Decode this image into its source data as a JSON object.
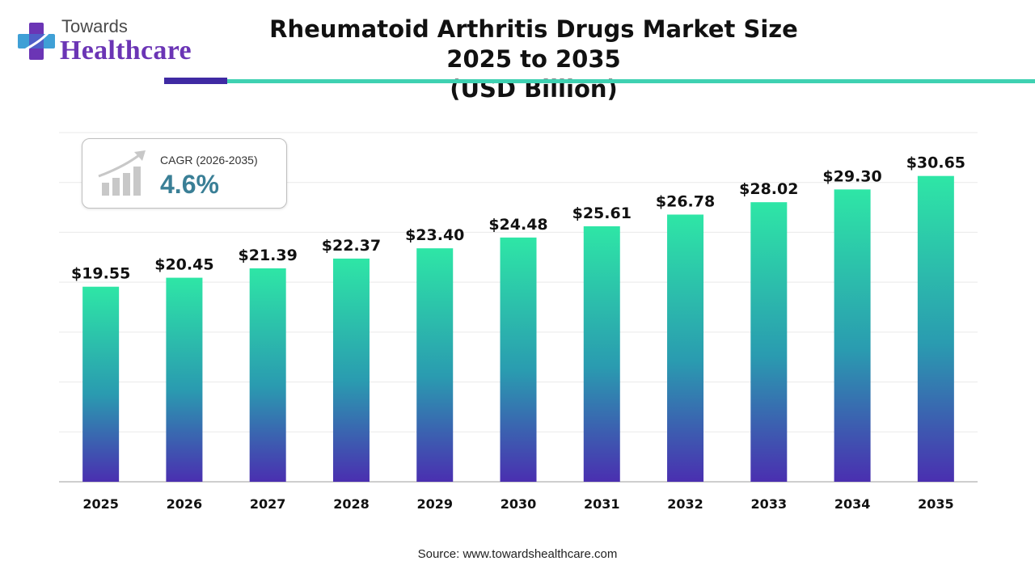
{
  "brand": {
    "top": "Towards",
    "bottom": "Healthcare"
  },
  "header": {
    "title_line1": "Rheumatoid Arthritis Drugs Market Size 2025 to 2035",
    "title_line2": "(USD Billion)"
  },
  "cagr": {
    "label": "CAGR (2026-2035)",
    "value": "4.6%"
  },
  "source": "Source: www.towardshealthcare.com",
  "colors": {
    "bar_top": "#2ee6a6",
    "bar_mid": "#2a9bb0",
    "bar_bottom": "#4a2fb0",
    "accent_purple": "#6b35b5",
    "accent_teal": "#3fd1b2",
    "cagr_value": "#3a7f96"
  },
  "icons": {
    "logo": "medical-cross-logo",
    "cagr": "growth-chart-icon"
  },
  "chart_data": {
    "type": "bar",
    "title": "Rheumatoid Arthritis Drugs Market Size 2025 to 2035 (USD Billion)",
    "xlabel": "",
    "ylabel": "",
    "categories": [
      "2025",
      "2026",
      "2027",
      "2028",
      "2029",
      "2030",
      "2031",
      "2032",
      "2033",
      "2034",
      "2035"
    ],
    "values": [
      19.55,
      20.45,
      21.39,
      22.37,
      23.4,
      24.48,
      25.61,
      26.78,
      28.02,
      29.3,
      30.65
    ],
    "value_labels": [
      "$19.55",
      "$20.45",
      "$21.39",
      "$22.37",
      "$23.40",
      "$24.48",
      "$25.61",
      "$26.78",
      "$28.02",
      "$29.30",
      "$30.65"
    ],
    "ylim": [
      0,
      35
    ],
    "grid": true,
    "legend": "none"
  }
}
